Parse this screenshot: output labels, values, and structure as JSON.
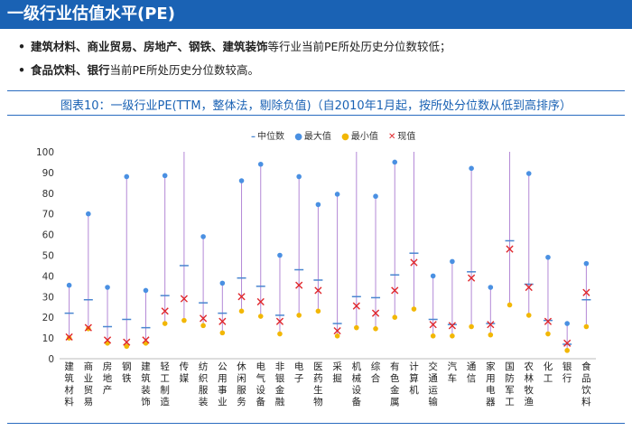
{
  "title": "一级行业估值水平(PE)",
  "bullets": [
    {
      "bold": "建筑材料、商业贸易、房地产、钢铁、建筑装饰",
      "rest": "等行业当前PE所处历史分位数较低；"
    },
    {
      "bold": "食品饮料、银行",
      "rest": "当前PE所处历史分位数较高。"
    }
  ],
  "bullet_symbol": "•",
  "caption": "图表10：一级行业PE(TTM，整体法，剔除负值)（自2010年1月起，按所处分位数从低到高排序）",
  "colors": {
    "brand": "#1a62b4",
    "median": "#4a86d0",
    "max": "#4a90e2",
    "min": "#f2b705",
    "current": "#e0282d",
    "range_line": "#b388d6"
  },
  "chart_data": {
    "type": "scatter",
    "title": "",
    "xlabel": "",
    "ylabel": "",
    "ylim": [
      0,
      100
    ],
    "yticks": [
      0,
      10,
      20,
      30,
      40,
      50,
      60,
      70,
      80,
      90,
      100
    ],
    "legend": [
      "中位数",
      "最大值",
      "最小值",
      "现值"
    ],
    "legend_position": "top",
    "categories": [
      "建筑材料",
      "商业贸易",
      "房地产",
      "钢铁",
      "建筑装饰",
      "轻工制造",
      "传媒",
      "纺织服装",
      "公用事业",
      "休闲服务",
      "电气设备",
      "非银金融",
      "电子",
      "医药生物",
      "采掘",
      "机械设备",
      "综合",
      "有色金属",
      "计算机",
      "交通运输",
      "汽车",
      "通信",
      "家用电器",
      "国防军工",
      "农林牧渔",
      "化工",
      "银行",
      "食品饮料"
    ],
    "series": [
      {
        "name": "中位数",
        "values": [
          22,
          28.5,
          15.5,
          19,
          15,
          30.5,
          45,
          27,
          22,
          39,
          35,
          21,
          43,
          38,
          17,
          30,
          29.5,
          40.5,
          51,
          19,
          16.5,
          42,
          17,
          57,
          36,
          18.5,
          7,
          28.5
        ]
      },
      {
        "name": "最大值",
        "values": [
          35.5,
          70,
          34.5,
          88,
          33,
          88.5,
          100,
          59,
          36.5,
          86,
          94,
          50,
          88,
          74.5,
          79.5,
          100,
          78.5,
          95,
          100,
          40,
          47,
          92,
          34.5,
          100,
          89.5,
          49,
          17,
          46
        ]
      },
      {
        "name": "最小值",
        "values": [
          10,
          14.5,
          7.5,
          6,
          7.5,
          17,
          18.5,
          16,
          12.5,
          23,
          20.5,
          12,
          21,
          23,
          11,
          15,
          14.5,
          20,
          24,
          11,
          11,
          15.5,
          11.5,
          26,
          21,
          12,
          4,
          15.5
        ]
      },
      {
        "name": "现值",
        "values": [
          10.5,
          15,
          9,
          8,
          9,
          23,
          29,
          19.5,
          18,
          30,
          27.5,
          18,
          35.5,
          33,
          13.5,
          25.5,
          22,
          33,
          46.5,
          16.5,
          16,
          39,
          16.5,
          53,
          34.5,
          18,
          7.5,
          32
        ]
      }
    ]
  }
}
